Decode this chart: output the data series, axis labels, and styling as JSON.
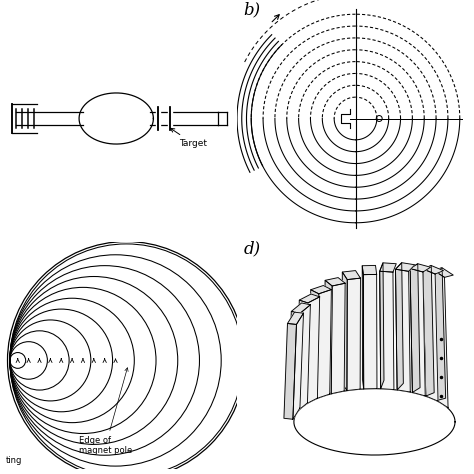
{
  "bg_color": "#ffffff",
  "label_b": "b)",
  "label_d": "d)",
  "label_target": "Target",
  "label_edge": "Edge of\nmagnet pole",
  "label_ting": "ting",
  "font_label": 12,
  "font_small": 6.5,
  "lc": "#000000",
  "lw": 0.9
}
